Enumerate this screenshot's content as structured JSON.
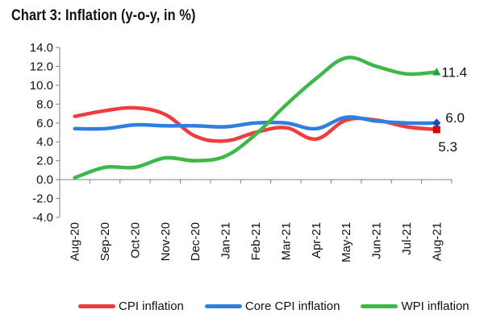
{
  "chart_data": {
    "type": "line",
    "title": "Chart 3: Inflation (y-o-y, in %)",
    "xlabel": "",
    "ylabel": "",
    "ylim": [
      -4.0,
      14.0
    ],
    "yticks": [
      14,
      12,
      10,
      8,
      6,
      4,
      2,
      0,
      -2,
      -4
    ],
    "ytick_labels": [
      "14.0",
      "12.0",
      "10.0",
      "8.0",
      "6.0",
      "4.0",
      "2.0",
      "0.0",
      "-2.0",
      "-4.0"
    ],
    "categories": [
      "Aug-20",
      "Sep-20",
      "Oct-20",
      "Nov-20",
      "Dec-20",
      "Jan-21",
      "Feb-21",
      "Mar-21",
      "Apr-21",
      "May-21",
      "Jun-21",
      "Jul-21",
      "Aug-21"
    ],
    "series": [
      {
        "name": "CPI inflation",
        "color": "#f03c3c",
        "values": [
          6.7,
          7.3,
          7.6,
          6.9,
          4.6,
          4.1,
          5.0,
          5.5,
          4.3,
          6.3,
          6.3,
          5.6,
          5.3
        ],
        "end_marker": "square",
        "end_marker_color": "#e00000",
        "end_label": "5.3"
      },
      {
        "name": "Core CPI inflation",
        "color": "#2f7fe0",
        "values": [
          5.4,
          5.4,
          5.8,
          5.7,
          5.7,
          5.6,
          6.0,
          6.0,
          5.4,
          6.6,
          6.2,
          6.0,
          6.0
        ],
        "end_marker": "diamond",
        "end_marker_color": "#1a4fb0",
        "end_label": "6.0"
      },
      {
        "name": "WPI inflation",
        "color": "#3fb84a",
        "values": [
          0.2,
          1.3,
          1.3,
          2.3,
          2.0,
          2.5,
          4.8,
          7.9,
          10.7,
          12.9,
          12.0,
          11.2,
          11.4
        ],
        "end_marker": "triangle",
        "end_marker_color": "#1fa33c",
        "end_label": "11.4"
      }
    ],
    "grid": false,
    "legend_position": "bottom"
  }
}
